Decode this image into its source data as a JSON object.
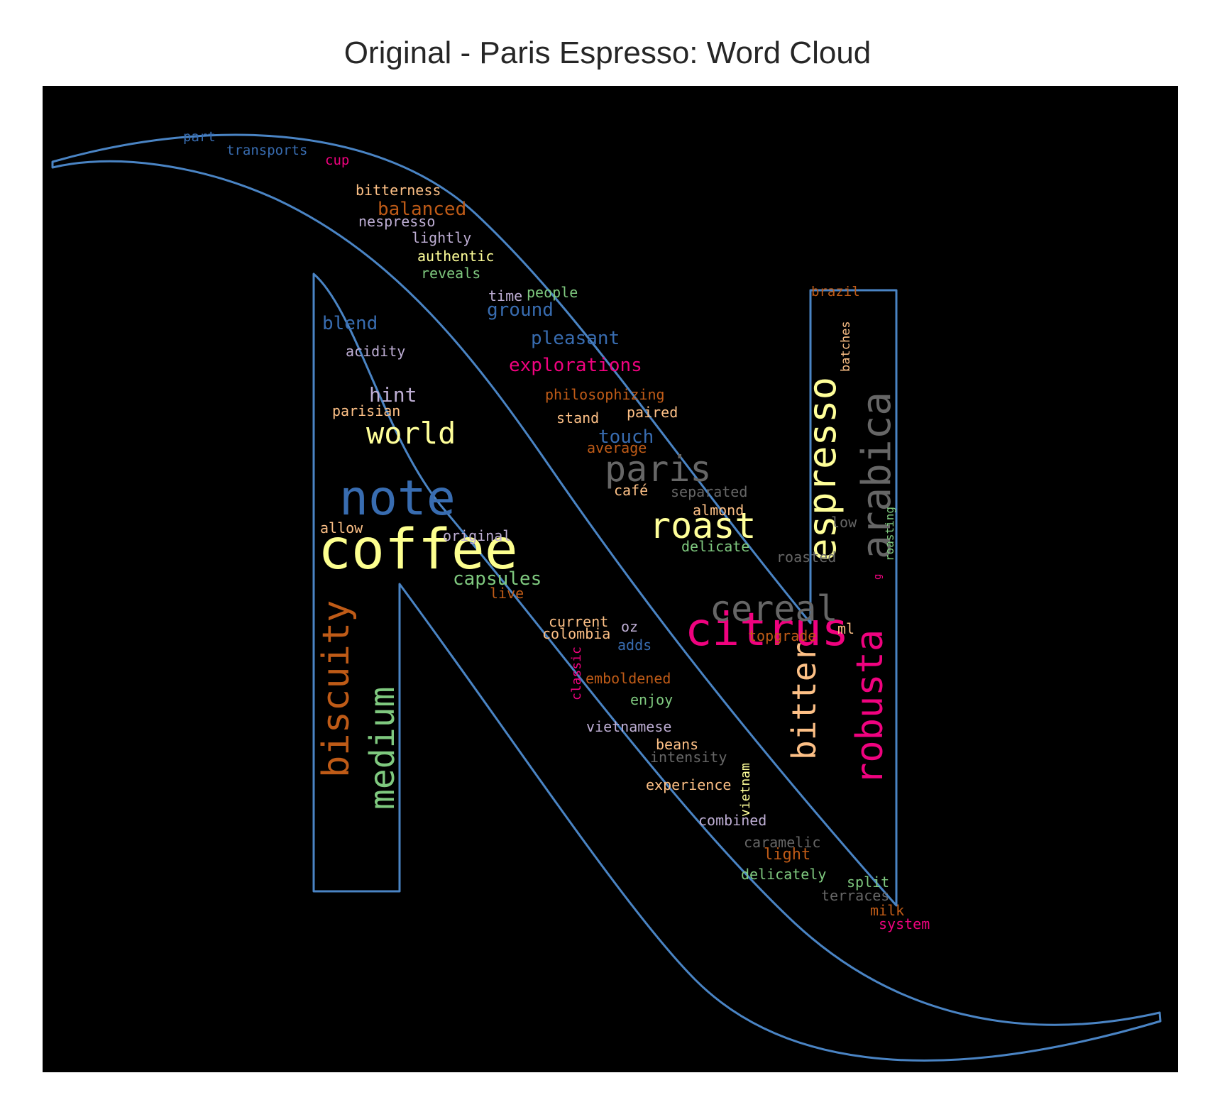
{
  "title": "Original - Paris Espresso: Word Cloud",
  "colors": {
    "outline": "#4a84c4",
    "background": "#000000"
  },
  "words": [
    {
      "text": "coffee",
      "color": "#fdff8f"
    },
    {
      "text": "note",
      "color": "#386cb0"
    },
    {
      "text": "citrus",
      "color": "#f0027f"
    },
    {
      "text": "arabica",
      "color": "#666666"
    },
    {
      "text": "espresso",
      "color": "#ffff99"
    },
    {
      "text": "robusta",
      "color": "#f0027f"
    },
    {
      "text": "biscuity",
      "color": "#bf5b17"
    },
    {
      "text": "medium",
      "color": "#7fc97f"
    },
    {
      "text": "paris",
      "color": "#666666"
    },
    {
      "text": "cereal",
      "color": "#666666"
    },
    {
      "text": "roast",
      "color": "#ffff99"
    },
    {
      "text": "bitter",
      "color": "#fdc086"
    },
    {
      "text": "world",
      "color": "#ffff99"
    },
    {
      "text": "hint",
      "color": "#beaed4"
    },
    {
      "text": "blend",
      "color": "#386cb0"
    },
    {
      "text": "ground",
      "color": "#386cb0"
    },
    {
      "text": "pleasant",
      "color": "#386cb0"
    },
    {
      "text": "explorations",
      "color": "#f0027f"
    },
    {
      "text": "balanced",
      "color": "#bf5b17"
    },
    {
      "text": "capsules",
      "color": "#7fc97f"
    },
    {
      "text": "touch",
      "color": "#386cb0"
    },
    {
      "text": "bitterness",
      "color": "#fdc086"
    },
    {
      "text": "nespresso",
      "color": "#beaed4"
    },
    {
      "text": "lightly",
      "color": "#beaed4"
    },
    {
      "text": "authentic",
      "color": "#ffff99"
    },
    {
      "text": "reveals",
      "color": "#7fc97f"
    },
    {
      "text": "time",
      "color": "#beaed4"
    },
    {
      "text": "people",
      "color": "#7fc97f"
    },
    {
      "text": "acidity",
      "color": "#beaed4"
    },
    {
      "text": "parisian",
      "color": "#fdc086"
    },
    {
      "text": "philosophizing",
      "color": "#bf5b17"
    },
    {
      "text": "stand",
      "color": "#fdc086"
    },
    {
      "text": "paired",
      "color": "#fdc086"
    },
    {
      "text": "average",
      "color": "#bf5b17"
    },
    {
      "text": "café",
      "color": "#fdc086"
    },
    {
      "text": "separated",
      "color": "#666666"
    },
    {
      "text": "almond",
      "color": "#fdc086"
    },
    {
      "text": "delicate",
      "color": "#7fc97f"
    },
    {
      "text": "roasted",
      "color": "#666666"
    },
    {
      "text": "low",
      "color": "#666666"
    },
    {
      "text": "allow",
      "color": "#fdc086"
    },
    {
      "text": "original",
      "color": "#beaed4"
    },
    {
      "text": "live",
      "color": "#bf5b17"
    },
    {
      "text": "current",
      "color": "#fdc086"
    },
    {
      "text": "colombia",
      "color": "#fdc086"
    },
    {
      "text": "oz",
      "color": "#beaed4"
    },
    {
      "text": "adds",
      "color": "#386cb0"
    },
    {
      "text": "topgrade",
      "color": "#bf5b17"
    },
    {
      "text": "ml",
      "color": "#fdc086"
    },
    {
      "text": "emboldened",
      "color": "#bf5b17"
    },
    {
      "text": "classic",
      "color": "#f0027f"
    },
    {
      "text": "enjoy",
      "color": "#7fc97f"
    },
    {
      "text": "vietnamese",
      "color": "#beaed4"
    },
    {
      "text": "beans",
      "color": "#fdc086"
    },
    {
      "text": "intensity",
      "color": "#666666"
    },
    {
      "text": "experience",
      "color": "#fdc086"
    },
    {
      "text": "vietnam",
      "color": "#ffff99"
    },
    {
      "text": "combined",
      "color": "#beaed4"
    },
    {
      "text": "caramelic",
      "color": "#666666"
    },
    {
      "text": "light",
      "color": "#bf5b17"
    },
    {
      "text": "delicately",
      "color": "#7fc97f"
    },
    {
      "text": "split",
      "color": "#7fc97f"
    },
    {
      "text": "terraces",
      "color": "#666666"
    },
    {
      "text": "milk",
      "color": "#bf5b17"
    },
    {
      "text": "system",
      "color": "#f0027f"
    },
    {
      "text": "part",
      "color": "#386cb0"
    },
    {
      "text": "transports",
      "color": "#386cb0"
    },
    {
      "text": "cup",
      "color": "#f0027f"
    },
    {
      "text": "brazil",
      "color": "#bf5b17"
    },
    {
      "text": "batches",
      "color": "#fdc086"
    },
    {
      "text": "roasting",
      "color": "#7fc97f"
    },
    {
      "text": "g",
      "color": "#f0027f"
    }
  ]
}
